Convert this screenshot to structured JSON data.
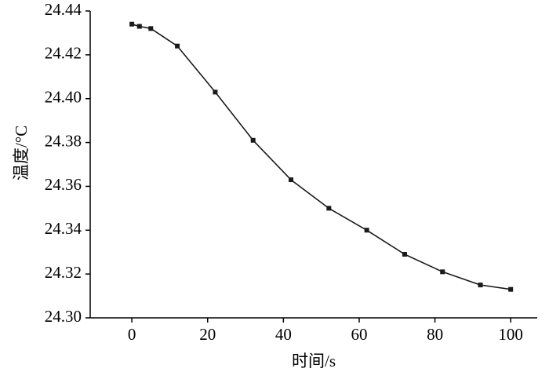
{
  "chart_data": {
    "type": "line",
    "title": "",
    "xlabel": "时间/s",
    "ylabel": "温度/°C",
    "xlim": [
      -11,
      107
    ],
    "ylim": [
      24.3,
      24.44
    ],
    "xticks": [
      0,
      20,
      40,
      60,
      80,
      100
    ],
    "yticks": [
      24.3,
      24.32,
      24.34,
      24.36,
      24.38,
      24.4,
      24.42,
      24.44
    ],
    "grid": false,
    "legend": false,
    "marker": "square",
    "line_color": "#1a1a1a",
    "series": [
      {
        "name": "temperature",
        "x": [
          0,
          2,
          5,
          12,
          22,
          32,
          42,
          52,
          62,
          72,
          82,
          92,
          100
        ],
        "y": [
          24.434,
          24.433,
          24.432,
          24.424,
          24.403,
          24.381,
          24.363,
          24.35,
          24.34,
          24.329,
          24.321,
          24.315,
          24.313
        ]
      }
    ]
  }
}
